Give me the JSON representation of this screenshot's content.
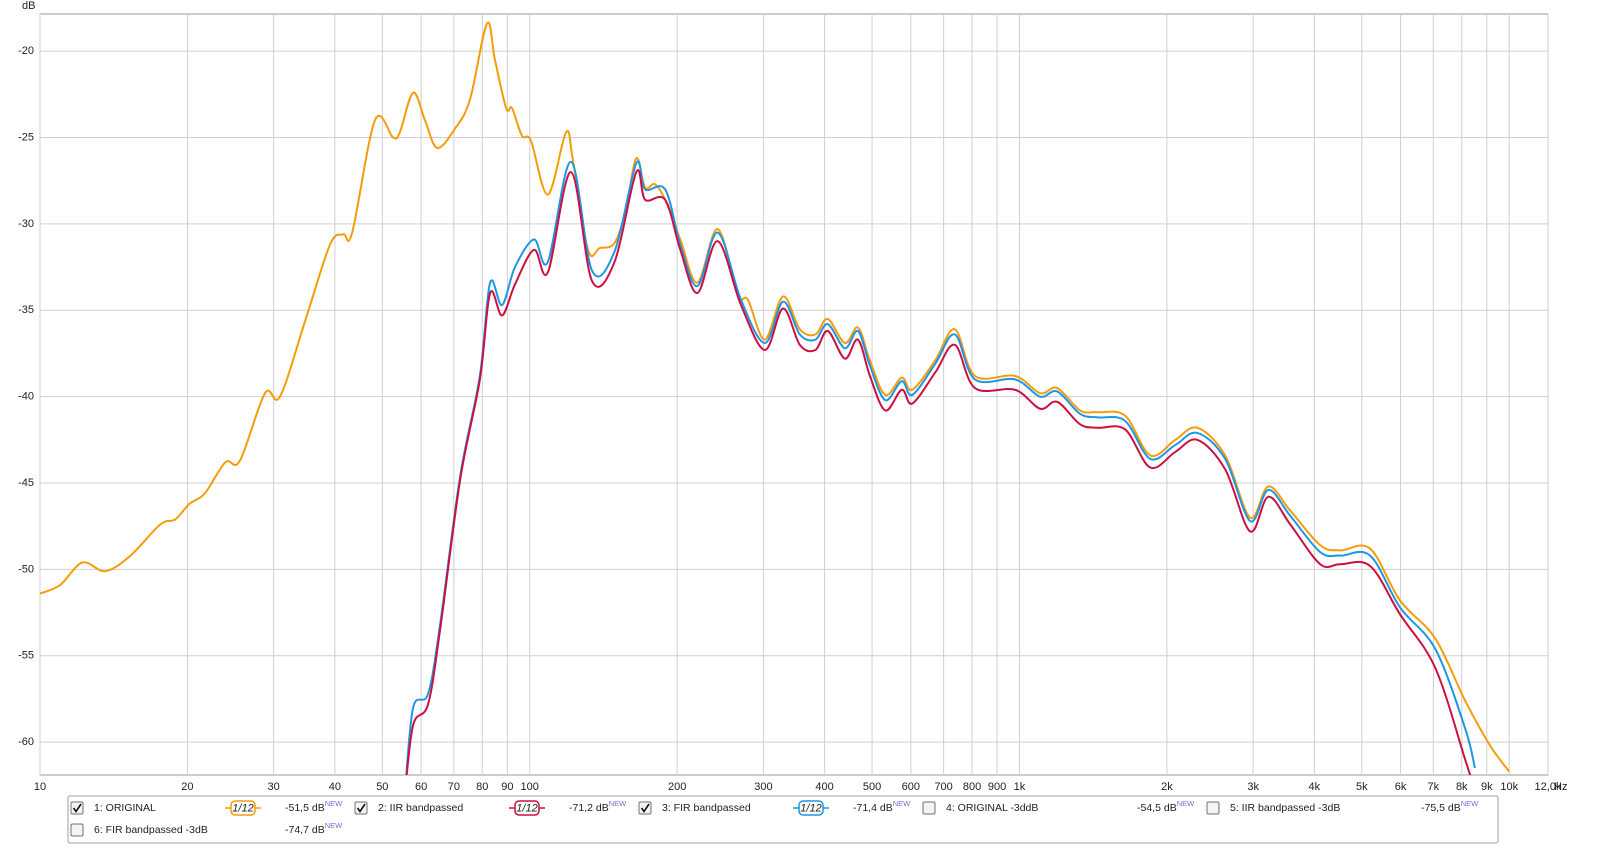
{
  "chart_data": {
    "type": "line",
    "y_unit": "dB",
    "x_unit": "Hz",
    "log_x": true,
    "grid": true,
    "xlim": [
      10,
      12000
    ],
    "ylim": [
      -61.9,
      -17.85
    ],
    "yticks": [
      -20,
      -25,
      -30,
      -35,
      -40,
      -45,
      -50,
      -55,
      -60
    ],
    "xticks": [
      10,
      20,
      30,
      40,
      50,
      60,
      70,
      80,
      90,
      100,
      200,
      300,
      400,
      500,
      600,
      700,
      800,
      900,
      {
        "value": 1000,
        "label": "1k"
      },
      {
        "value": 2000,
        "label": "2k"
      },
      {
        "value": 3000,
        "label": "3k"
      },
      {
        "value": 4000,
        "label": "4k"
      },
      {
        "value": 5000,
        "label": "5k"
      },
      {
        "value": 6000,
        "label": "6k"
      },
      {
        "value": 7000,
        "label": "7k"
      },
      {
        "value": 8000,
        "label": "8k"
      },
      {
        "value": 9000,
        "label": "9k"
      },
      {
        "value": 10000,
        "label": "10k"
      },
      {
        "value": 12000,
        "label": "12,0k"
      }
    ],
    "series": [
      {
        "name": "1: ORIGINAL",
        "color": "#f59c0a",
        "checked": true,
        "smoothing": "1/12",
        "readout": "-51,5 dB",
        "readout_badge": "NEW",
        "x": [
          10,
          11,
          12.2,
          13.6,
          15.3,
          17.6,
          18.9,
          20.2,
          21.7,
          23.9,
          25.6,
          28.8,
          30.9,
          34.8,
          39.1,
          41.6,
          43.4,
          48.3,
          52.6,
          54.3,
          57.8,
          61.1,
          64.7,
          70.3,
          75.5,
          81.8,
          84.9,
          89.5,
          92,
          96.4,
          100.6,
          108.9,
          118.6,
          122.5,
          131.5,
          139,
          149,
          157,
          165,
          172,
          180,
          189,
          203,
          220,
          242,
          266,
          279,
          302,
          329,
          356,
          383,
          406,
          440,
          468,
          495,
          532,
          575,
          604,
          673,
          738,
          811,
          979,
          1102,
          1194,
          1330,
          1445,
          1643,
          1849,
          2080,
          2307,
          2630,
          2958,
          3222,
          3573,
          4113,
          4519,
          5200,
          5985,
          7063,
          8128,
          9141,
          10000
        ],
        "values": [
          -51.4,
          -50.9,
          -49.6,
          -50.1,
          -49.2,
          -47.4,
          -47.1,
          -46.2,
          -45.6,
          -43.8,
          -43.7,
          -39.8,
          -40.0,
          -35.6,
          -31.2,
          -30.6,
          -30.5,
          -24.0,
          -25.0,
          -24.7,
          -22.4,
          -24.0,
          -25.6,
          -24.5,
          -22.8,
          -18.4,
          -20.5,
          -23.3,
          -23.3,
          -24.9,
          -25.2,
          -28.3,
          -24.7,
          -26.3,
          -31.5,
          -31.4,
          -31.1,
          -29.2,
          -26.2,
          -27.9,
          -27.7,
          -28.6,
          -30.9,
          -33.4,
          -30.3,
          -34.1,
          -34.4,
          -36.7,
          -34.2,
          -36.1,
          -36.4,
          -35.5,
          -36.9,
          -36.0,
          -37.9,
          -39.9,
          -38.9,
          -39.6,
          -37.9,
          -36.1,
          -38.8,
          -38.8,
          -39.8,
          -39.5,
          -40.8,
          -40.9,
          -41.1,
          -43.4,
          -42.5,
          -41.8,
          -43.4,
          -47.0,
          -45.2,
          -46.6,
          -48.6,
          -48.9,
          -48.8,
          -51.8,
          -54.0,
          -57.6,
          -60.2,
          -61.7
        ]
      },
      {
        "name": "2: IIR bandpassed",
        "color": "#cc1040",
        "checked": true,
        "smoothing": "1/12",
        "readout": "-71,2 dB",
        "readout_badge": "NEW",
        "x": [
          55.6,
          57.8,
          62,
          65.6,
          72.1,
          79.1,
          83,
          87.8,
          93.3,
          102,
          108.9,
          121.4,
          134,
          149,
          165,
          172,
          189,
          203,
          220,
          242,
          270,
          302,
          329,
          356,
          383,
          406,
          440,
          468,
          495,
          532,
          575,
          604,
          673,
          738,
          811,
          979,
          1102,
          1194,
          1330,
          1445,
          1643,
          1849,
          2080,
          2307,
          2630,
          2958,
          3222,
          3573,
          4113,
          4519,
          5200,
          5985,
          7063,
          8128,
          8512
        ],
        "values": [
          -63.0,
          -59.0,
          -57.8,
          -53.5,
          -44.8,
          -39.0,
          -34.0,
          -35.3,
          -33.5,
          -31.5,
          -32.8,
          -27.0,
          -33.3,
          -32.2,
          -27.0,
          -28.6,
          -28.6,
          -31.5,
          -34.0,
          -31.0,
          -34.7,
          -37.3,
          -34.9,
          -37.0,
          -37.3,
          -36.2,
          -37.8,
          -36.7,
          -38.8,
          -40.8,
          -39.6,
          -40.4,
          -38.6,
          -37.0,
          -39.5,
          -39.6,
          -40.7,
          -40.3,
          -41.6,
          -41.8,
          -41.9,
          -44.1,
          -43.2,
          -42.5,
          -44.2,
          -47.8,
          -45.8,
          -47.4,
          -49.7,
          -49.7,
          -49.8,
          -52.6,
          -55.7,
          -61.0,
          -62.8
        ]
      },
      {
        "name": "3: FIR bandpassed",
        "color": "#1e96e6",
        "checked": true,
        "smoothing": "1/12",
        "readout": "-71,4 dB",
        "readout_badge": "NEW",
        "x": [
          55.6,
          57.8,
          62,
          65.6,
          72.1,
          79.1,
          83,
          87.8,
          93.3,
          102,
          108.9,
          121.4,
          134,
          149,
          165,
          172,
          189,
          203,
          220,
          242,
          270,
          302,
          329,
          356,
          383,
          406,
          440,
          468,
          495,
          532,
          575,
          604,
          673,
          738,
          811,
          979,
          1102,
          1194,
          1330,
          1445,
          1643,
          1849,
          2080,
          2307,
          2630,
          2958,
          3222,
          3573,
          4113,
          4519,
          5200,
          5985,
          7063,
          8128,
          8512
        ],
        "values": [
          -63.0,
          -58.0,
          -57.2,
          -53.2,
          -44.6,
          -38.8,
          -33.4,
          -34.7,
          -32.5,
          -30.9,
          -32.2,
          -26.4,
          -32.7,
          -31.6,
          -26.5,
          -28.0,
          -28.0,
          -31.2,
          -33.6,
          -30.5,
          -34.4,
          -36.9,
          -34.5,
          -36.4,
          -36.7,
          -35.8,
          -37.2,
          -36.2,
          -38.2,
          -40.2,
          -39.1,
          -39.9,
          -38.1,
          -36.4,
          -39.0,
          -39.0,
          -40.0,
          -39.7,
          -41.0,
          -41.2,
          -41.4,
          -43.6,
          -42.8,
          -42.1,
          -43.6,
          -47.2,
          -45.4,
          -46.9,
          -49.0,
          -49.2,
          -49.2,
          -52.2,
          -54.6,
          -59.2,
          -61.5
        ]
      },
      {
        "name": "4: ORIGINAL -3ddB",
        "color": "#b89e00",
        "checked": false,
        "readout": "-54,5 dB",
        "readout_badge": "NEW"
      },
      {
        "name": "5: IIR bandpassed -3dB",
        "color": "#1f9a1f",
        "checked": false,
        "readout": "-75,5 dB",
        "readout_badge": "NEW"
      },
      {
        "name": "6: FIR bandpassed -3dB",
        "color": "#1f3fc8",
        "checked": false,
        "readout": "-74,7 dB",
        "readout_badge": "NEW"
      }
    ]
  }
}
